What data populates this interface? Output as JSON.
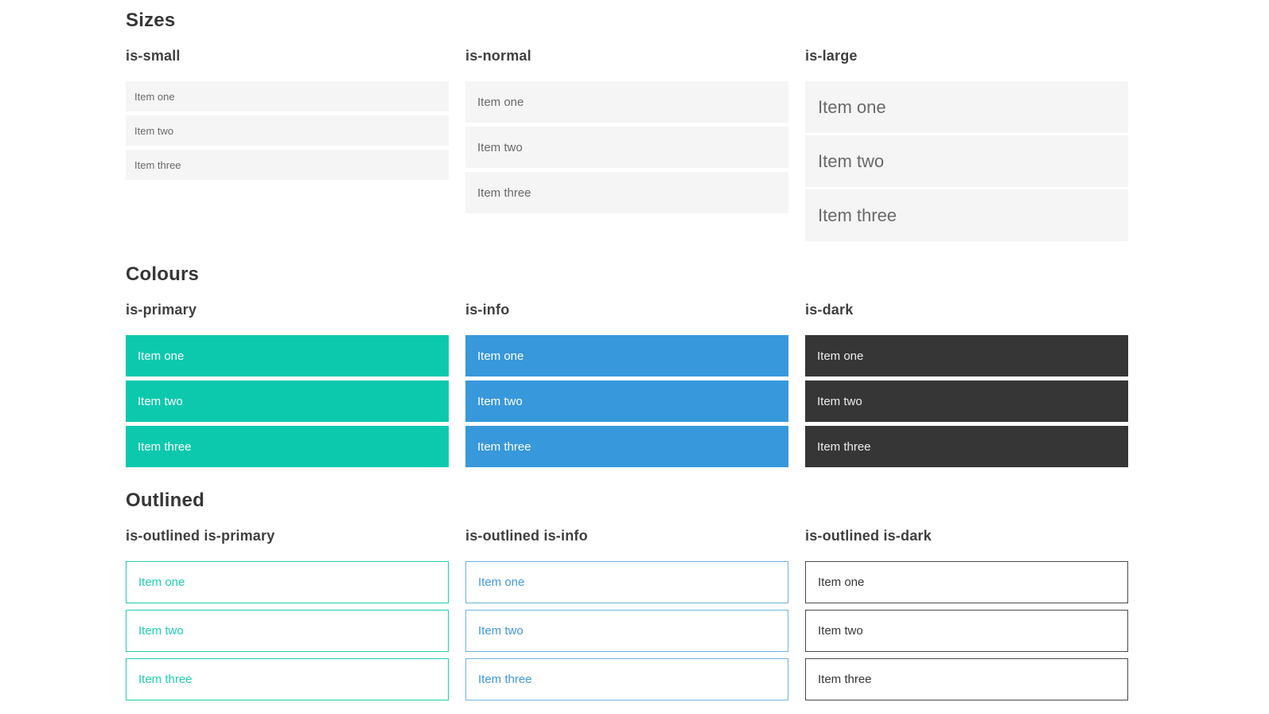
{
  "sections": [
    {
      "title": "Sizes",
      "groups": [
        {
          "label": "is-small",
          "items": [
            "Item one",
            "Item two",
            "Item three"
          ]
        },
        {
          "label": "is-normal",
          "items": [
            "Item one",
            "Item two",
            "Item three"
          ]
        },
        {
          "label": "is-large",
          "items": [
            "Item one",
            "Item two",
            "Item three"
          ]
        }
      ]
    },
    {
      "title": "Colours",
      "groups": [
        {
          "label": "is-primary",
          "items": [
            "Item one",
            "Item two",
            "Item three"
          ]
        },
        {
          "label": "is-info",
          "items": [
            "Item one",
            "Item two",
            "Item three"
          ]
        },
        {
          "label": "is-dark",
          "items": [
            "Item one",
            "Item two",
            "Item three"
          ]
        }
      ]
    },
    {
      "title": "Outlined",
      "groups": [
        {
          "label": "is-outlined is-primary",
          "items": [
            "Item one",
            "Item two",
            "Item three"
          ]
        },
        {
          "label": "is-outlined is-info",
          "items": [
            "Item one",
            "Item two",
            "Item three"
          ]
        },
        {
          "label": "is-outlined is-dark",
          "items": [
            "Item one",
            "Item two",
            "Item three"
          ]
        }
      ]
    }
  ],
  "colors": {
    "heading": "#363636",
    "item_background": "#f5f5f5",
    "item_text": "#696969",
    "primary": "#0cc9ad",
    "info": "#3798db",
    "dark": "#363636",
    "outlined_primary": "#1fceb1",
    "outlined_info": "#4299dc",
    "outlined_info_border": "#6fb3e2",
    "outlined_dark_border": "#4a4a4a"
  }
}
